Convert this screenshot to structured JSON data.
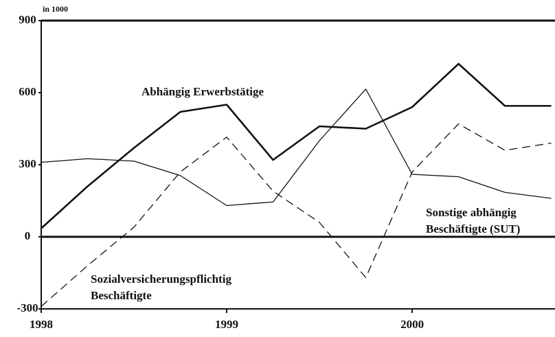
{
  "chart_data": {
    "type": "line",
    "unit_label": "in 1000",
    "x": [
      1998,
      1998.25,
      1998.5,
      1998.75,
      1999,
      1999.25,
      1999.5,
      1999.75,
      2000,
      2000.25,
      2000.5,
      2000.75
    ],
    "xlim": [
      1998,
      2000.77
    ],
    "xticks": [
      1998,
      1999,
      2000
    ],
    "ylim": [
      -300,
      900
    ],
    "yticks": [
      -300,
      0,
      300,
      600,
      900
    ],
    "series": [
      {
        "name": "Abhängig Erwerbstätige",
        "color": "#111111",
        "style": "solid-thick",
        "values": [
          35,
          210,
          370,
          520,
          550,
          320,
          460,
          450,
          540,
          720,
          545,
          545
        ]
      },
      {
        "name": "Sonstige abhängig Beschäftigte (SUT)",
        "color": "#111111",
        "style": "solid-thin",
        "values": [
          310,
          325,
          315,
          255,
          130,
          145,
          400,
          615,
          260,
          250,
          185,
          160
        ]
      },
      {
        "name": "Sozialversicherungspflichtig Beschäftigte",
        "color": "#111111",
        "style": "dashed",
        "values": [
          -290,
          -120,
          40,
          270,
          415,
          190,
          60,
          -170,
          270,
          470,
          360,
          390
        ]
      }
    ]
  }
}
